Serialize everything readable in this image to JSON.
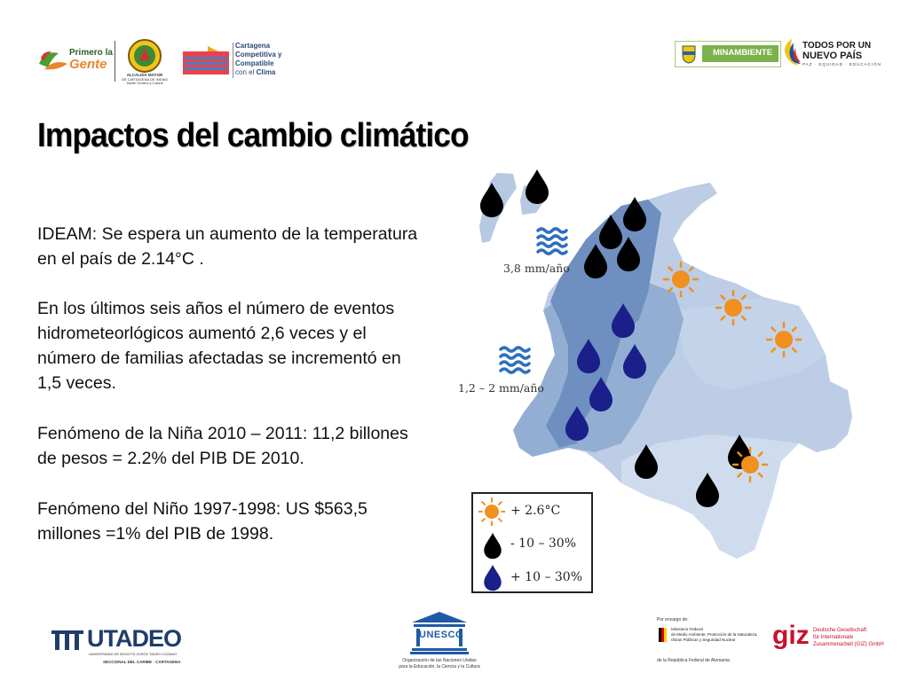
{
  "header": {
    "logo_primero": {
      "line1": "Primero la",
      "line2": "Gente"
    },
    "logo_alcaldia": {
      "line1": "ALCALDÍA MAYOR",
      "line2": "DE CARTAGENA DE INDIAS",
      "line3": "Distrito Turístico y Cultural"
    },
    "logo_cartagena": {
      "line1": "Cartagena",
      "line2": "Competitiva y",
      "line3": "Compatible",
      "line4": "con el",
      "line4b": "Clima"
    },
    "logo_minambiente": "MINAMBIENTE",
    "logo_todos": {
      "line1": "TODOS POR UN",
      "line2": "NUEVO PAÍS",
      "line3": "PAZ · EQUIDAD · EDUCACIÓN"
    }
  },
  "title": "Impactos del cambio climático",
  "paragraphs": {
    "p1": "IDEAM: Se espera un aumento de la temperatura en el país de 2.14°C .",
    "p2": "En los últimos seis años el número de eventos hidrometeorlógicos aumentó 2,6 veces y el número de familias afectadas se incrementó en 1,5 veces.",
    "p3": "Fenómeno de la Niña 2010 – 2011: 11,2 billones de pesos = 2.2% del PIB DE 2010.",
    "p4": "Fenómeno del Niño 1997-1998: US $563,5 millones =1% del PIB de 1998."
  },
  "map": {
    "label_north": "3,8 mm/año",
    "label_west": "1,2 – 2 mm/año",
    "legend": {
      "temp": "+ 2.6°C",
      "dry": "- 10 – 30%",
      "wet": "+ 10 – 30%"
    },
    "colors": {
      "dark_region": "#6e8fbf",
      "mid_region": "#93aed3",
      "light_region": "#bccde5",
      "pale_region": "#cfdcee",
      "black_drop": "#000000",
      "blue_drop": "#1a1f8a",
      "sun": "#f0901e",
      "wave": "#2e6fc0"
    }
  },
  "footer": {
    "utadeo": {
      "name": "UTADEO",
      "sub1": "UNIVERSIDAD DE BOGOTÁ JORGE TADEO LOZANO",
      "sub2": "SECCIONAL DEL CARIBE · CARTAGENA"
    },
    "unesco": {
      "name": "UNESCO",
      "sub1": "Organización de las Naciones Unidas",
      "sub2": "para la Educación, la Ciencia y la Cultura"
    },
    "bmub": {
      "top": "Por encargo de:",
      "line1": "Ministerio Federal",
      "line2": "de Medio Ambiente, Protección de la Naturaleza,",
      "line3": "Obras Públicas y Seguridad Nuclear",
      "bottom": "de la República Federal de Alemania"
    },
    "giz": {
      "name": "giz",
      "line1": "Deutsche Gesellschaft",
      "line2": "für Internationale",
      "line3": "Zusammenarbeit (GIZ) GmbH"
    }
  }
}
